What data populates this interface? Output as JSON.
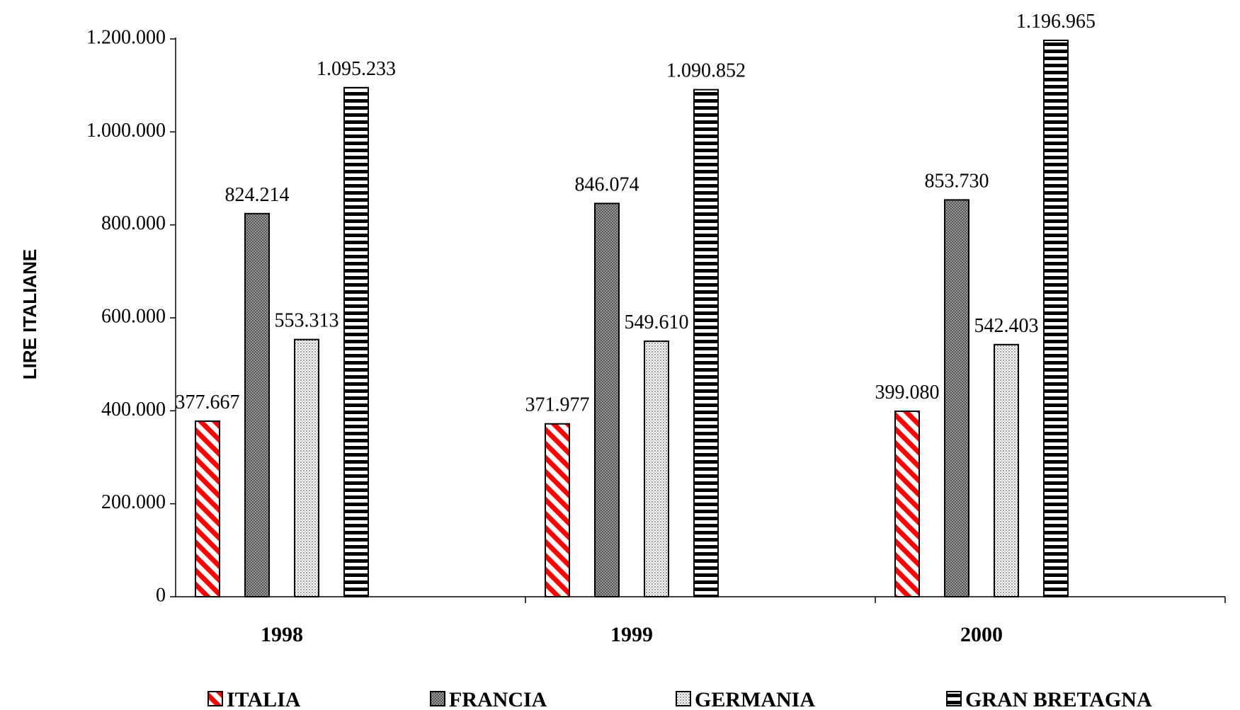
{
  "chart_data": {
    "type": "bar",
    "ylabel": "LIRE  ITALIANE",
    "xlabel": "",
    "ylim": [
      0,
      1200000
    ],
    "yticks": [
      {
        "value": 0,
        "label": "0"
      },
      {
        "value": 200000,
        "label": "200.000"
      },
      {
        "value": 400000,
        "label": "400.000"
      },
      {
        "value": 600000,
        "label": "600.000"
      },
      {
        "value": 800000,
        "label": "800.000"
      },
      {
        "value": 1000000,
        "label": "1.000.000"
      },
      {
        "value": 1200000,
        "label": "1.200.000"
      }
    ],
    "categories": [
      "1998",
      "1999",
      "2000"
    ],
    "series": [
      {
        "name": "ITALIA",
        "pattern": "diag-red",
        "values": [
          377667,
          371977,
          399080
        ],
        "labels": [
          "377.667",
          "371.977",
          "399.080"
        ]
      },
      {
        "name": "FRANCIA",
        "pattern": "crosshatch-gray",
        "values": [
          824214,
          846074,
          853730
        ],
        "labels": [
          "824.214",
          "846.074",
          "853.730"
        ]
      },
      {
        "name": "GERMANIA",
        "pattern": "dots-light",
        "values": [
          553313,
          549610,
          542403
        ],
        "labels": [
          "553.313",
          "549.610",
          "542.403"
        ]
      },
      {
        "name": "GRAN BRETAGNA",
        "pattern": "horizontal-stripes",
        "values": [
          1095233,
          1090852,
          1196965
        ],
        "labels": [
          "1.095.233",
          "1.090.852",
          "1.196.965"
        ]
      }
    ],
    "legend_position": "bottom",
    "grid": false,
    "colors": {
      "italia": "#ff0000",
      "francia": "#808080",
      "germania": "#c0c0c0",
      "gran_bretagna": "#000000"
    }
  }
}
